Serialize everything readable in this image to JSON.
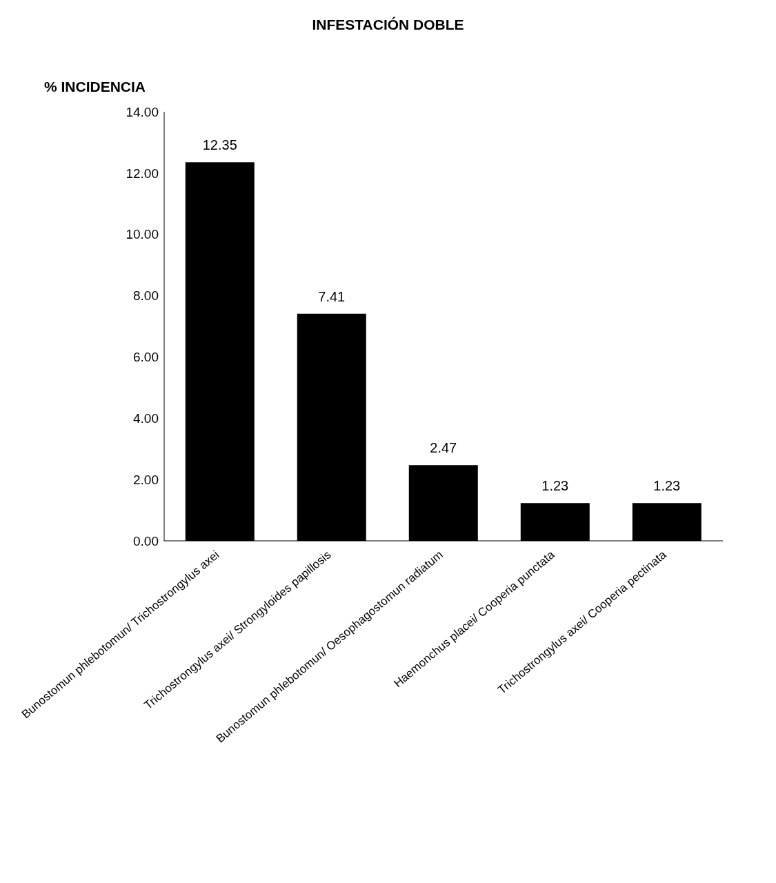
{
  "chart_data": {
    "type": "bar",
    "title": "INFESTACIÓN DOBLE",
    "ylabel": "% INCIDENCIA",
    "categories": [
      "Bunostomun phlebotomun/ Trichostrongylus axei",
      "Trichostrongylus axei/ Strongyloides papillosis",
      "Bunostomun phlebotomun/ Oesophagostomun radiatum",
      "Haemonchus placei/ Cooperia punctata",
      "Trichostrongylus axei/ Cooperia pectinata"
    ],
    "values": [
      12.35,
      7.41,
      2.47,
      1.23,
      1.23
    ],
    "color": "#000000",
    "ylim": [
      0,
      14
    ],
    "yticks": [
      {
        "value": 0,
        "label": "0.00"
      },
      {
        "value": 2,
        "label": "2.00"
      },
      {
        "value": 4,
        "label": "4.00"
      },
      {
        "value": 6,
        "label": "6.00"
      },
      {
        "value": 8,
        "label": "8.00"
      },
      {
        "value": 10,
        "label": "10.00"
      },
      {
        "value": 12,
        "label": "12.00"
      },
      {
        "value": 14,
        "label": "14.00"
      }
    ],
    "data_labels": true,
    "grid": false
  }
}
